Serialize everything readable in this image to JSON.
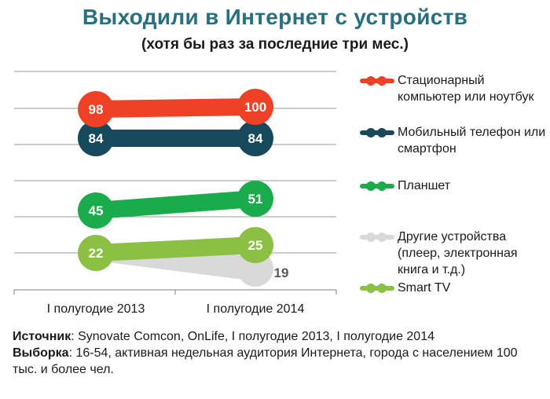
{
  "title": "Выходили в Интернет с устройств",
  "subtitle": "(хотя бы раз за последние три мес.)",
  "chart_data": {
    "type": "line",
    "categories": [
      "I полугодие 2013",
      "I полугодие 2014"
    ],
    "unit": "%",
    "series": [
      {
        "name": "Стационарный компьютер или ноутбук",
        "values": [
          98,
          100
        ],
        "color": "#ee4125"
      },
      {
        "name": "Мобильный телефон или смартфон",
        "values": [
          84,
          84
        ],
        "color": "#17495d"
      },
      {
        "name": "Планшет",
        "values": [
          45,
          51
        ],
        "color": "#1aab4b"
      },
      {
        "name": "Другие устройства (плеер, электронная книга и т.д.)",
        "values": [
          null,
          19
        ],
        "color": "#d9d9d9",
        "label_color": "#595959"
      },
      {
        "name": "Smart TV",
        "values": [
          22,
          25
        ],
        "color": "#8cc045"
      }
    ],
    "gridlines": true
  },
  "legend": [
    {
      "label": "Стационарный компьютер или ноутбук",
      "color": "#ee4125"
    },
    {
      "label": "Мобильный телефон или смартфон",
      "color": "#17495d"
    },
    {
      "label": "Планшет",
      "color": "#1aab4b"
    },
    {
      "label": "Другие устройства (плеер, электронная книга и т.д.)",
      "color": "#d9d9d9"
    },
    {
      "label": "Smart TV",
      "color": "#8cc045"
    }
  ],
  "source": {
    "source_label": "Источник",
    "source_text": ": Synovate Comcon, OnLife, I полугодие 2013, I полугодие 2014",
    "sample_label": "Выборка",
    "sample_text": ": 16-54, активная недельная аудитория Интернета, города с населением 100 тыс. и более чел."
  }
}
